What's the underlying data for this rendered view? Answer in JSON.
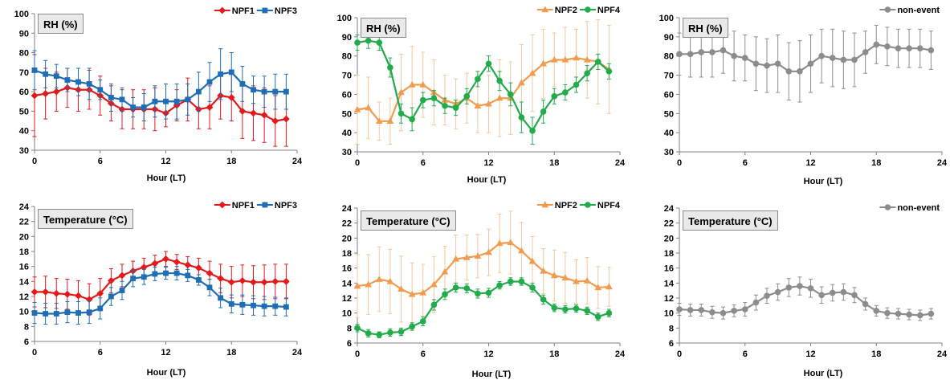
{
  "chart_data": [
    {
      "type": "line",
      "title": "RH (%)",
      "xlabel": "Hour (LT)",
      "ylabel": "",
      "xlim": [
        0,
        24
      ],
      "xticks": [
        0,
        6,
        12,
        18,
        24
      ],
      "ylim": [
        30,
        100
      ],
      "yticks": [
        30,
        40,
        50,
        60,
        70,
        80,
        90,
        100
      ],
      "legend": "top-right",
      "error_bars": true,
      "x": [
        0,
        1,
        2,
        3,
        4,
        5,
        6,
        7,
        8,
        9,
        10,
        11,
        12,
        13,
        14,
        15,
        16,
        17,
        18,
        19,
        20,
        21,
        22,
        23
      ],
      "series": [
        {
          "name": "NPF1",
          "color": "#e31a1c",
          "marker": "diamond",
          "values": [
            58,
            59,
            60,
            62,
            61,
            61,
            58,
            54,
            51,
            51,
            51,
            51,
            49,
            53,
            56,
            51,
            52,
            58,
            57,
            50,
            49,
            48,
            45,
            46
          ],
          "errors": [
            21,
            13,
            10,
            10,
            11,
            10,
            10,
            9,
            10,
            10,
            10,
            11,
            7,
            8,
            11,
            10,
            11,
            12,
            12,
            14,
            14,
            14,
            13,
            14
          ]
        },
        {
          "name": "NPF3",
          "color": "#1f6db5",
          "marker": "square",
          "values": [
            71,
            69,
            68,
            66,
            65,
            64,
            61,
            57,
            56,
            52,
            52,
            55,
            55,
            55,
            56,
            60,
            65,
            69,
            70,
            64,
            61,
            60,
            60,
            60
          ],
          "errors": [
            10,
            7,
            6,
            6,
            7,
            8,
            5,
            7,
            6,
            5,
            7,
            8,
            9,
            9,
            8,
            10,
            10,
            13,
            10,
            9,
            7,
            8,
            9,
            9
          ]
        }
      ]
    },
    {
      "type": "line",
      "title": "RH (%)",
      "xlabel": "Hour (LT)",
      "ylabel": "",
      "xlim": [
        0,
        24
      ],
      "xticks": [
        0,
        6,
        12,
        18,
        24
      ],
      "ylim": [
        30,
        100
      ],
      "yticks": [
        30,
        40,
        50,
        60,
        70,
        80,
        90,
        100
      ],
      "legend": "top-right",
      "error_bars": true,
      "x": [
        0,
        1,
        2,
        3,
        4,
        5,
        6,
        7,
        8,
        9,
        10,
        11,
        12,
        13,
        14,
        15,
        16,
        17,
        18,
        19,
        20,
        21,
        22,
        23
      ],
      "series": [
        {
          "name": "NPF2",
          "color": "#f29b4e",
          "marker": "triangle",
          "values": [
            52,
            53,
            46,
            46,
            61,
            65,
            65,
            61,
            57,
            55,
            58,
            54,
            55,
            58,
            58,
            66,
            71,
            76,
            78,
            78,
            79,
            78,
            77,
            73
          ],
          "errors": [
            18,
            16,
            10,
            12,
            20,
            20,
            17,
            17,
            13,
            13,
            13,
            14,
            15,
            20,
            19,
            20,
            20,
            18,
            14,
            17,
            15,
            20,
            22,
            23
          ]
        },
        {
          "name": "NPF4",
          "color": "#21ab4a",
          "marker": "circle",
          "values": [
            87,
            88,
            87,
            74,
            50,
            47,
            57,
            58,
            54,
            53,
            59,
            68,
            76,
            67,
            60,
            48,
            41,
            51,
            59,
            61,
            65,
            71,
            77,
            72
          ],
          "errors": [
            4,
            4,
            4,
            5,
            5,
            6,
            4,
            4,
            4,
            4,
            4,
            4,
            4,
            5,
            6,
            8,
            7,
            6,
            4,
            4,
            4,
            4,
            4,
            4
          ]
        }
      ]
    },
    {
      "type": "line",
      "title": "RH (%)",
      "xlabel": "Hour (LT)",
      "ylabel": "",
      "xlim": [
        0,
        24
      ],
      "xticks": [
        0,
        6,
        12,
        18,
        24
      ],
      "ylim": [
        30,
        100
      ],
      "yticks": [
        30,
        40,
        50,
        60,
        70,
        80,
        90,
        100
      ],
      "legend": "top-right",
      "error_bars": true,
      "x": [
        0,
        1,
        2,
        3,
        4,
        5,
        6,
        7,
        8,
        9,
        10,
        11,
        12,
        13,
        14,
        15,
        16,
        17,
        18,
        19,
        20,
        21,
        22,
        23
      ],
      "series": [
        {
          "name": "non-event",
          "color": "#8c8c8c",
          "marker": "circle",
          "values": [
            81,
            81,
            82,
            82,
            83,
            80,
            79,
            76,
            75,
            76,
            72,
            72,
            76,
            80,
            79,
            78,
            78,
            82,
            86,
            85,
            84,
            84,
            84,
            83
          ],
          "errors": [
            11,
            12,
            13,
            13,
            12,
            13,
            12,
            14,
            14,
            15,
            15,
            16,
            15,
            14,
            15,
            15,
            14,
            11,
            10,
            10,
            10,
            10,
            10,
            10
          ]
        }
      ]
    },
    {
      "type": "line",
      "title": "Temperature (°C)",
      "xlabel": "Hour (LT)",
      "ylabel": "",
      "xlim": [
        0,
        24
      ],
      "xticks": [
        0,
        6,
        12,
        18,
        24
      ],
      "ylim": [
        6,
        24
      ],
      "yticks": [
        6,
        8,
        10,
        12,
        14,
        16,
        18,
        20,
        22,
        24
      ],
      "legend": "top-right",
      "error_bars": true,
      "x": [
        0,
        1,
        2,
        3,
        4,
        5,
        6,
        7,
        8,
        9,
        10,
        11,
        12,
        13,
        14,
        15,
        16,
        17,
        18,
        19,
        20,
        21,
        22,
        23
      ],
      "series": [
        {
          "name": "NPF1",
          "color": "#e31a1c",
          "marker": "diamond",
          "values": [
            12.6,
            12.6,
            12.4,
            12.3,
            12.1,
            11.6,
            12.4,
            14.1,
            14.8,
            15.4,
            15.9,
            16.4,
            17.0,
            16.6,
            16.2,
            15.8,
            15.1,
            14.4,
            13.9,
            14.1,
            13.9,
            13.9,
            14.0,
            14.0
          ],
          "errors": [
            2.0,
            2.1,
            2.0,
            2.0,
            2.0,
            2.1,
            2.0,
            1.6,
            1.5,
            1.3,
            1.2,
            1.1,
            1.0,
            1.0,
            1.1,
            1.3,
            1.6,
            1.9,
            2.1,
            2.1,
            2.2,
            2.3,
            2.3,
            2.3
          ]
        },
        {
          "name": "NPF3",
          "color": "#1f6db5",
          "marker": "square",
          "values": [
            9.8,
            9.7,
            9.7,
            9.9,
            9.8,
            9.9,
            10.4,
            12.0,
            12.8,
            14.4,
            14.6,
            15.0,
            15.1,
            15.1,
            14.8,
            14.2,
            13.2,
            11.8,
            11.0,
            10.9,
            10.8,
            10.7,
            10.7,
            10.6
          ],
          "errors": [
            1.4,
            1.4,
            1.4,
            1.4,
            1.5,
            1.5,
            1.4,
            1.2,
            1.2,
            1.1,
            1.0,
            0.9,
            0.8,
            0.9,
            0.8,
            0.7,
            1.1,
            1.3,
            1.2,
            1.3,
            1.3,
            1.3,
            1.2,
            1.2
          ]
        }
      ]
    },
    {
      "type": "line",
      "title": "Temperature (°C)",
      "xlabel": "Hour (LT)",
      "ylabel": "",
      "xlim": [
        0,
        24
      ],
      "xticks": [
        0,
        6,
        12,
        18,
        24
      ],
      "ylim": [
        6,
        24
      ],
      "yticks": [
        6,
        8,
        10,
        12,
        14,
        16,
        18,
        20,
        22,
        24
      ],
      "legend": "top-right",
      "error_bars": true,
      "x": [
        0,
        1,
        2,
        3,
        4,
        5,
        6,
        7,
        8,
        9,
        10,
        11,
        12,
        13,
        14,
        15,
        16,
        17,
        18,
        19,
        20,
        21,
        22,
        23
      ],
      "series": [
        {
          "name": "NPF2",
          "color": "#f29b4e",
          "marker": "triangle",
          "values": [
            13.6,
            13.8,
            14.5,
            14.2,
            13.2,
            12.5,
            12.7,
            13.8,
            15.5,
            17.2,
            17.4,
            17.6,
            18.1,
            19.3,
            19.4,
            18.3,
            16.9,
            15.6,
            15.0,
            14.7,
            14.2,
            14.3,
            13.4,
            13.5
          ],
          "errors": [
            4.2,
            4.0,
            4.3,
            4.3,
            4.4,
            4.2,
            3.8,
            3.7,
            3.4,
            3.2,
            3.0,
            2.9,
            3.1,
            3.9,
            4.2,
            3.8,
            3.3,
            3.0,
            3.4,
            3.4,
            2.9,
            3.1,
            2.8,
            2.6
          ]
        },
        {
          "name": "NPF4",
          "color": "#21ab4a",
          "marker": "circle",
          "values": [
            8.0,
            7.3,
            7.1,
            7.4,
            7.5,
            8.2,
            8.9,
            11.1,
            12.5,
            13.4,
            13.3,
            12.6,
            12.7,
            13.7,
            14.2,
            14.2,
            13.4,
            11.8,
            10.7,
            10.5,
            10.6,
            10.3,
            9.5,
            10.0
          ],
          "errors": [
            0.5,
            0.5,
            0.4,
            0.5,
            0.5,
            0.5,
            0.6,
            0.7,
            0.7,
            0.6,
            0.6,
            0.6,
            0.6,
            0.5,
            0.5,
            0.5,
            0.6,
            0.6,
            0.5,
            0.5,
            0.5,
            0.5,
            0.5,
            0.5
          ]
        }
      ]
    },
    {
      "type": "line",
      "title": "Temperature (°C)",
      "xlabel": "Hour (LT)",
      "ylabel": "",
      "xlim": [
        0,
        24
      ],
      "xticks": [
        0,
        6,
        12,
        18,
        24
      ],
      "ylim": [
        6,
        24
      ],
      "yticks": [
        6,
        8,
        10,
        12,
        14,
        16,
        18,
        20,
        22,
        24
      ],
      "legend": "top-right",
      "error_bars": true,
      "x": [
        0,
        1,
        2,
        3,
        4,
        5,
        6,
        7,
        8,
        9,
        10,
        11,
        12,
        13,
        14,
        15,
        16,
        17,
        18,
        19,
        20,
        21,
        22,
        23
      ],
      "series": [
        {
          "name": "non-event",
          "color": "#8c8c8c",
          "marker": "circle",
          "values": [
            10.5,
            10.4,
            10.4,
            10.1,
            10.0,
            10.3,
            10.5,
            11.4,
            12.3,
            12.8,
            13.4,
            13.6,
            13.3,
            12.4,
            12.7,
            12.8,
            12.4,
            11.2,
            10.3,
            10.0,
            9.9,
            9.8,
            9.7,
            9.9
          ],
          "errors": [
            0.8,
            0.8,
            0.8,
            0.8,
            0.8,
            0.8,
            0.9,
            1.0,
            1.0,
            1.1,
            1.2,
            1.2,
            1.2,
            1.1,
            1.1,
            1.1,
            1.0,
            0.8,
            0.7,
            0.7,
            0.7,
            0.7,
            0.7,
            0.7
          ]
        }
      ]
    }
  ]
}
